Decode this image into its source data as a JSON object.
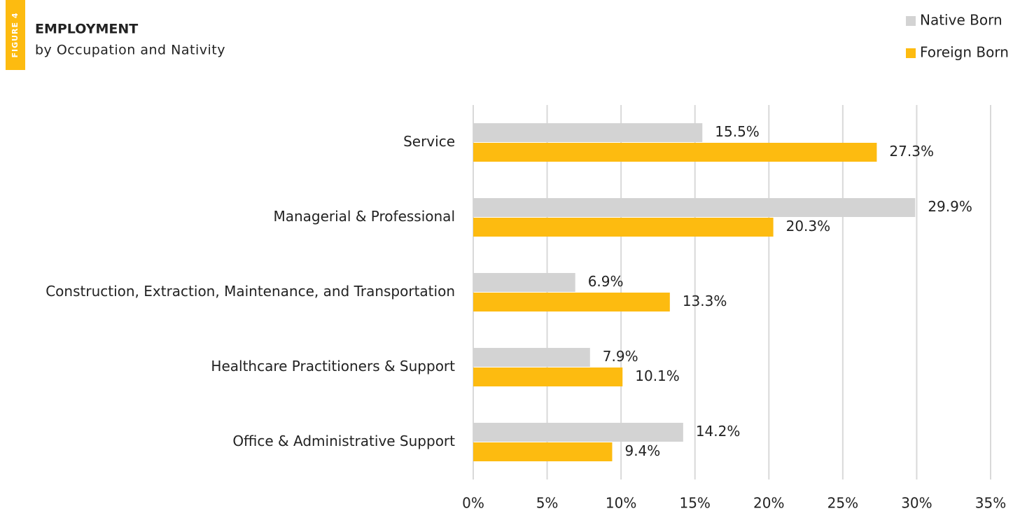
{
  "chart_data": {
    "type": "bar",
    "orientation": "horizontal",
    "figure_label": "FIGURE 4",
    "title": "EMPLOYMENT",
    "subtitle": "by Occupation and Nativity",
    "categories": [
      "Service",
      "Managerial & Professional",
      "Construction, Extraction, Maintenance, and Transportation",
      "Healthcare Practitioners & Support",
      "Office & Administrative Support"
    ],
    "series": [
      {
        "name": "Native Born",
        "color": "#d3d3d3",
        "values": [
          15.5,
          29.9,
          6.9,
          7.9,
          14.2
        ],
        "value_labels": [
          "15.5%",
          "29.9%",
          "6.9%",
          "7.9%",
          "14.2%"
        ]
      },
      {
        "name": "Foreign Born",
        "color": "#fdbb10",
        "values": [
          27.3,
          20.3,
          13.3,
          10.1,
          9.4
        ],
        "value_labels": [
          "27.3%",
          "20.3%",
          "13.3%",
          "10.1%",
          "9.4%"
        ]
      }
    ],
    "xlim": [
      0,
      35
    ],
    "xticks": [
      {
        "value": 0,
        "label": "0%"
      },
      {
        "value": 5,
        "label": "5%"
      },
      {
        "value": 10,
        "label": "10%"
      },
      {
        "value": 15,
        "label": "15%"
      },
      {
        "value": 20,
        "label": "20%"
      },
      {
        "value": 25,
        "label": "25%"
      },
      {
        "value": 30,
        "label": "30%"
      },
      {
        "value": 35,
        "label": "35%"
      }
    ],
    "grid": true,
    "legend": "top-right"
  }
}
